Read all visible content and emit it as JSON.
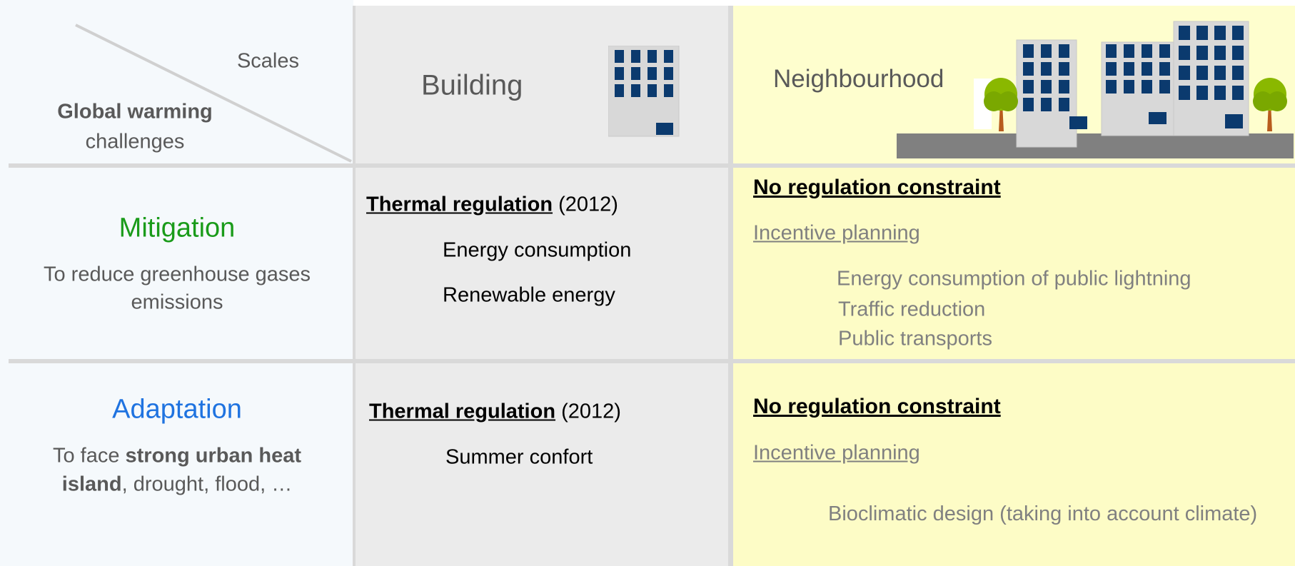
{
  "header": {
    "corner_top": "Scales",
    "corner_bold": "Global warming",
    "corner_rest": "challenges",
    "columns": [
      "Building",
      "Neighbourhood"
    ]
  },
  "rows": [
    {
      "title": "Mitigation",
      "description": [
        "To reduce greenhouse gases",
        "emissions"
      ],
      "building": {
        "heading": "Thermal regulation",
        "note": "(2012)",
        "items": [
          "Energy consumption",
          "Renewable energy"
        ]
      },
      "neighbourhood": {
        "heading": "No regulation constraint",
        "subheading": "Incentive planning",
        "items": [
          "Energy consumption of public lightning",
          "Traffic reduction",
          "Public transports"
        ]
      }
    },
    {
      "title": "Adaptation",
      "description": [
        "To face ",
        "strong urban heat",
        "island",
        ", drought, flood, …"
      ],
      "building": {
        "heading": "Thermal regulation",
        "note": "(2012)",
        "items": [
          "Summer confort"
        ]
      },
      "neighbourhood": {
        "heading": "No regulation constraint",
        "subheading": "Incentive planning",
        "items": [
          "Bioclimatic design (taking into account climate)"
        ]
      }
    }
  ]
}
